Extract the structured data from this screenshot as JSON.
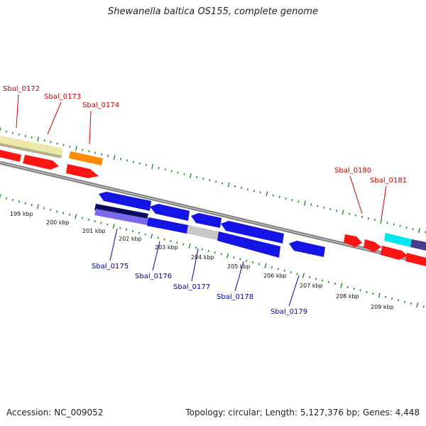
{
  "title": "Shewanella baltica OS155, complete genome",
  "footer": {
    "accession": "Accession: NC_009052",
    "topology": "Topology: circular; Length: 5,127,376 bp; Genes: 4,448"
  },
  "colors": {
    "forward_label": "#cc0000",
    "reverse_label": "#0000aa",
    "tick": "#228b22",
    "backbone": "#808080"
  },
  "kbp_labels": [
    "199 kbp",
    "200 kbp",
    "201 kbp",
    "202 kbp",
    "203 kbp",
    "204 kbp",
    "205 kbp",
    "206 kbp",
    "207 kbp",
    "208 kbp",
    "209 kbp"
  ],
  "gene_labels": {
    "forward": [
      "Sbal_0172",
      "Sbal_0173",
      "Sbal_0174",
      "Sbal_0180",
      "Sbal_0181"
    ],
    "reverse": [
      "Sbal_0175",
      "Sbal_0176",
      "Sbal_0177",
      "Sbal_0178",
      "Sbal_0179"
    ]
  }
}
